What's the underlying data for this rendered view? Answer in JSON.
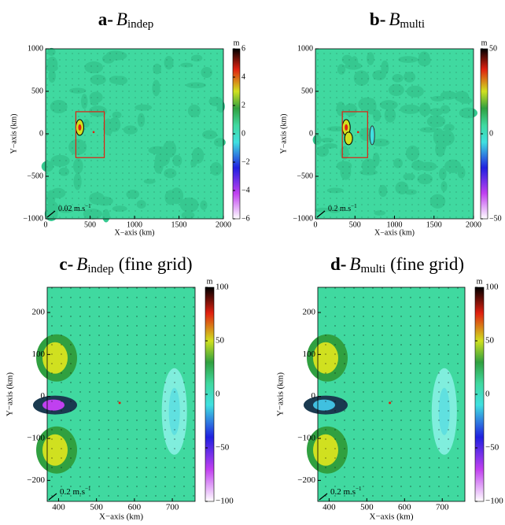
{
  "chart_data": [
    {
      "type": "contour",
      "title": {
        "prefix": "a-",
        "symbol": "B",
        "subscript": "indep"
      },
      "x_label": "X−axis (km)",
      "y_label": "Y−axis (km)",
      "xlim": [
        0,
        2000
      ],
      "xticks": [
        0,
        500,
        1000,
        1500,
        2000
      ],
      "ylim": [
        -1000,
        1000
      ],
      "yticks": [
        {
          "value": -1000,
          "label": "−1000"
        },
        {
          "value": -500,
          "label": "−500"
        },
        0,
        500,
        1000
      ],
      "colorbar": {
        "unit": "m",
        "lim": [
          -6,
          6
        ],
        "ticks": [
          {
            "value": -6,
            "label": "−6"
          },
          {
            "value": -4,
            "label": "−4"
          },
          {
            "value": -2,
            "label": "−2"
          },
          0,
          2,
          4,
          6
        ]
      },
      "scale_label": {
        "text": "0.02 m.s",
        "superscript": "−1"
      }
    },
    {
      "type": "contour",
      "title": {
        "prefix": "b-",
        "symbol": "B",
        "subscript": "multi"
      },
      "x_label": "X−axis (km)",
      "y_label": "Y−axis (km)",
      "xlim": [
        0,
        2000
      ],
      "xticks": [
        0,
        500,
        1000,
        1500,
        2000
      ],
      "ylim": [
        -1000,
        1000
      ],
      "yticks": [
        {
          "value": -1000,
          "label": "−1000"
        },
        {
          "value": -500,
          "label": "−500"
        },
        0,
        500,
        1000
      ],
      "colorbar": {
        "unit": "m",
        "lim": [
          -50,
          50
        ],
        "ticks": [
          {
            "value": -50,
            "label": "−50"
          },
          0,
          50
        ]
      },
      "scale_label": {
        "text": "0.2 m.s",
        "superscript": "−1"
      }
    },
    {
      "type": "contour",
      "title": {
        "prefix": "c-",
        "symbol": "B",
        "subscript": "indep",
        "suffix": "(fine grid)"
      },
      "x_label": "X−axis (km)",
      "y_label": "Y−axis (km)",
      "xlim": [
        370,
        760
      ],
      "xticks": [
        400,
        500,
        600,
        700
      ],
      "ylim": [
        -250,
        260
      ],
      "yticks": [
        {
          "value": -200,
          "label": "−200"
        },
        {
          "value": -100,
          "label": "−100"
        },
        0,
        100,
        200
      ],
      "colorbar": {
        "unit": "m",
        "lim": [
          -100,
          100
        ],
        "ticks": [
          {
            "value": -100,
            "label": "−100"
          },
          {
            "value": -50,
            "label": "−50"
          },
          0,
          50,
          100
        ]
      },
      "scale_label": {
        "text": "0.2 m.s",
        "superscript": "−1"
      }
    },
    {
      "type": "contour",
      "title": {
        "prefix": "d-",
        "symbol": "B",
        "subscript": "multi",
        "suffix": "(fine grid)"
      },
      "x_label": "X−axis (km)",
      "y_label": "Y−axis (km)",
      "xlim": [
        370,
        760
      ],
      "xticks": [
        400,
        500,
        600,
        700
      ],
      "ylim": [
        -250,
        260
      ],
      "yticks": [
        {
          "value": -200,
          "label": "−200"
        },
        {
          "value": -100,
          "label": "−100"
        },
        0,
        100,
        200
      ],
      "colorbar": {
        "unit": "m",
        "lim": [
          -100,
          100
        ],
        "ticks": [
          {
            "value": -100,
            "label": "−100"
          },
          {
            "value": -50,
            "label": "−50"
          },
          0,
          50,
          100
        ]
      },
      "scale_label": {
        "text": "0.2 m.s",
        "superscript": "−1"
      }
    }
  ]
}
